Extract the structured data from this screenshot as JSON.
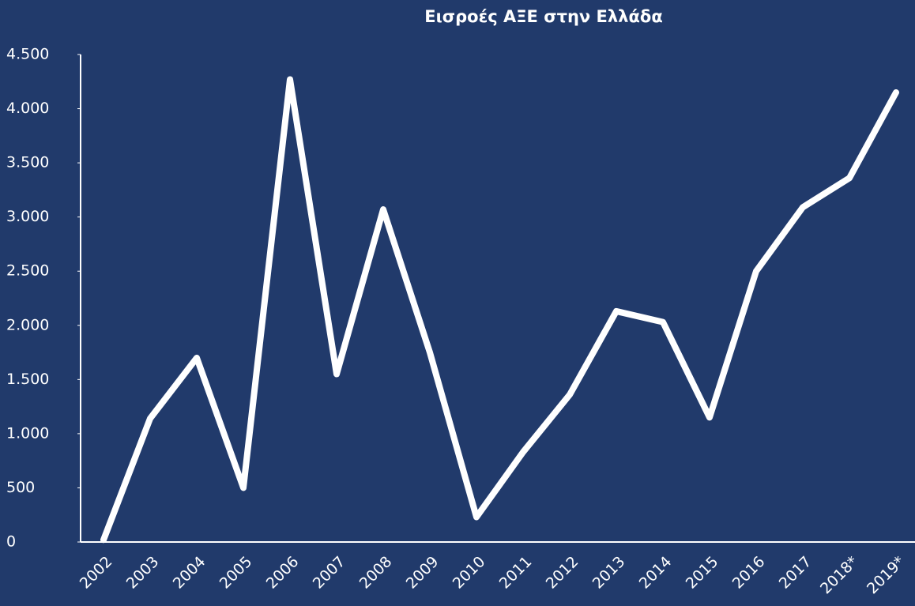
{
  "chart_data": {
    "type": "line",
    "title": "Εισροές ΑΞΕ στην Ελλάδα",
    "categories": [
      "2002",
      "2003",
      "2004",
      "2005",
      "2006",
      "2007",
      "2008",
      "2009",
      "2010",
      "2011",
      "2012",
      "2013",
      "2014",
      "2015",
      "2016",
      "2017",
      "2018*",
      "2019*"
    ],
    "series": [
      {
        "name": "Εισροές ΑΞΕ",
        "color": "#ffffff",
        "values": [
          20,
          1140,
          1700,
          500,
          4270,
          1550,
          3070,
          1750,
          230,
          830,
          1360,
          2130,
          2030,
          1150,
          2500,
          3090,
          3360,
          4150
        ]
      }
    ],
    "ylim": [
      0,
      4500
    ],
    "yticks": [
      0,
      500,
      {
        "value": 1000,
        "label": "1.000"
      },
      {
        "value": 1500,
        "label": "1.500"
      },
      {
        "value": 2000,
        "label": "2.000"
      },
      {
        "value": 2500,
        "label": "2.500"
      },
      {
        "value": 3000,
        "label": "3.000"
      },
      {
        "value": 3500,
        "label": "3.500"
      },
      {
        "value": 4000,
        "label": "4.000"
      },
      {
        "value": 4500,
        "label": "4.500"
      }
    ],
    "background": "#213a6b"
  }
}
